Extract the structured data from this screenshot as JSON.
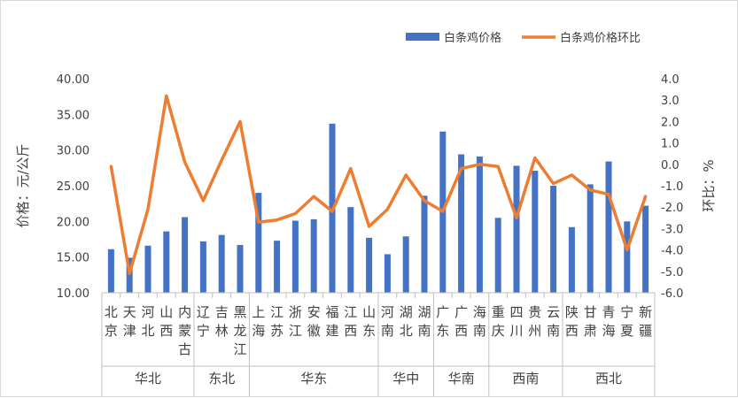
{
  "chart_data": {
    "type": "bar+line",
    "ylabel_left": "价格：元/公斤",
    "ylabel_right": "环比：%",
    "ylim_left": [
      10,
      40
    ],
    "yticks_left": [
      "10.00",
      "15.00",
      "20.00",
      "25.00",
      "30.00",
      "35.00",
      "40.00"
    ],
    "ylim_right": [
      -6,
      4
    ],
    "yticks_right": [
      "-6.0",
      "-5.0",
      "-4.0",
      "-3.0",
      "-2.0",
      "-1.0",
      "0.0",
      "1.0",
      "2.0",
      "3.0",
      "4.0"
    ],
    "categories": [
      "北京",
      "天津",
      "河北",
      "山西",
      "内蒙古",
      "辽宁",
      "吉林",
      "黑龙江",
      "上海",
      "江苏",
      "浙江",
      "安徽",
      "福建",
      "江西",
      "山东",
      "河南",
      "湖北",
      "湖南",
      "广东",
      "广西",
      "海南",
      "重庆",
      "四川",
      "贵州",
      "云南",
      "陕西",
      "甘肃",
      "青海",
      "宁夏",
      "新疆"
    ],
    "groups": [
      {
        "name": "华北",
        "count": 5
      },
      {
        "name": "东北",
        "count": 3
      },
      {
        "name": "华东",
        "count": 7
      },
      {
        "name": "华中",
        "count": 3
      },
      {
        "name": "华南",
        "count": 3
      },
      {
        "name": "西南",
        "count": 4
      },
      {
        "name": "西北",
        "count": 5
      }
    ],
    "series": [
      {
        "name": "白条鸡价格",
        "type": "bar",
        "axis": "left",
        "color": "#4472C4",
        "values": [
          16.1,
          14.9,
          16.6,
          18.6,
          20.6,
          17.2,
          18.1,
          16.7,
          24.0,
          17.3,
          20.1,
          20.3,
          33.7,
          22.0,
          17.7,
          15.4,
          17.9,
          23.6,
          32.6,
          29.4,
          29.1,
          20.5,
          27.8,
          27.1,
          25.0,
          19.2,
          25.2,
          28.4,
          20.0,
          22.2
        ]
      },
      {
        "name": "白条鸡价格环比",
        "type": "line",
        "axis": "right",
        "color": "#ED7D31",
        "values": [
          -0.1,
          -5.1,
          -2.1,
          3.2,
          0.1,
          -1.7,
          0.2,
          2.0,
          -2.7,
          -2.6,
          -2.3,
          -1.5,
          -2.2,
          -0.2,
          -2.9,
          -2.1,
          -0.5,
          -1.7,
          -2.2,
          -0.2,
          0.0,
          -0.1,
          -2.5,
          0.3,
          -0.9,
          -0.5,
          -1.2,
          -1.4,
          -4.0,
          -1.5
        ]
      }
    ],
    "legend_position": "top-right"
  }
}
